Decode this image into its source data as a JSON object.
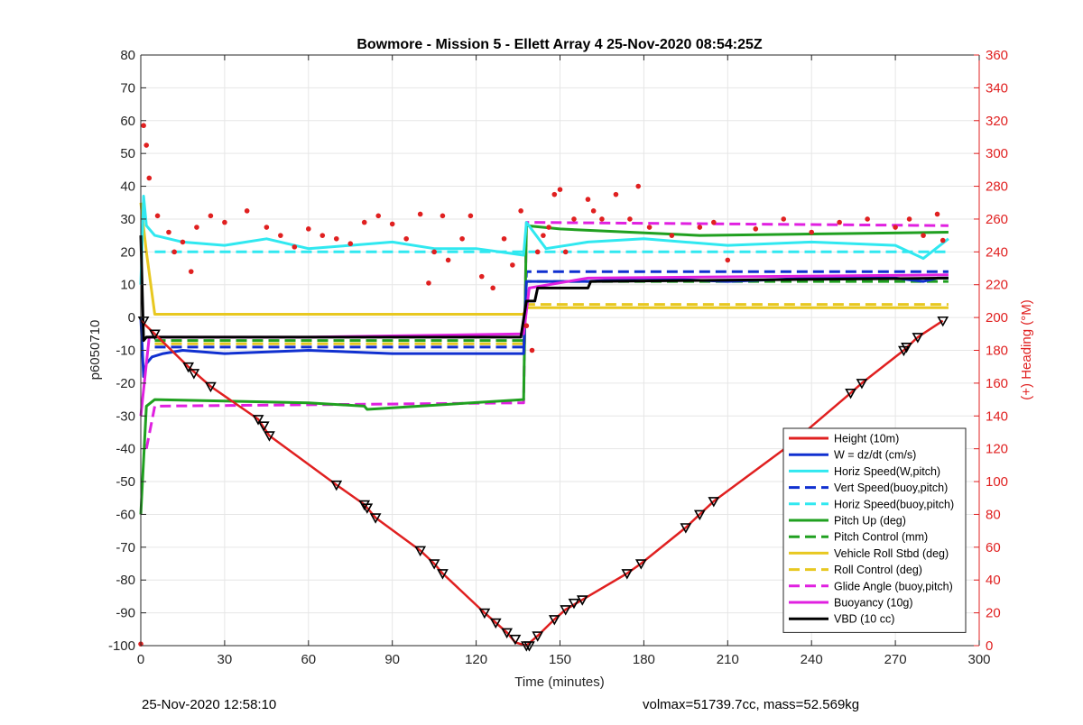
{
  "chart_data": {
    "type": "line",
    "title": "Bowmore - Mission 5 - Ellett Array 4 25-Nov-2020 08:54:25Z",
    "xlabel": "Time (minutes)",
    "ylabel": "p6050710",
    "y2label": "(+) Heading (°M)",
    "xlim": [
      0,
      300
    ],
    "ylim": [
      -100,
      80
    ],
    "y2lim": [
      0,
      360
    ],
    "xticks": [
      0,
      30,
      60,
      90,
      120,
      150,
      180,
      210,
      240,
      270,
      300
    ],
    "yticks": [
      -100,
      -90,
      -80,
      -70,
      -60,
      -50,
      -40,
      -30,
      -20,
      -10,
      0,
      10,
      20,
      30,
      40,
      50,
      60,
      70,
      80
    ],
    "y2ticks": [
      0,
      20,
      40,
      60,
      80,
      100,
      120,
      140,
      160,
      180,
      200,
      220,
      240,
      260,
      280,
      300,
      320,
      340,
      360
    ],
    "grid": true,
    "legend_position": "bottom-right",
    "series": [
      {
        "name": "Height (10m)",
        "color": "#e02020",
        "dash": "solid",
        "x": [
          0,
          5,
          17,
          25,
          42,
          46,
          70,
          80,
          84,
          100,
          105,
          108,
          123,
          127,
          131,
          134,
          138,
          142,
          148,
          152,
          158,
          174,
          179,
          195,
          200,
          205,
          232,
          254,
          258,
          273,
          278,
          287
        ],
        "y": [
          -1,
          -5,
          -15,
          -21,
          -31,
          -36,
          -51,
          -57,
          -61,
          -71,
          -75,
          -78,
          -90,
          -93,
          -96,
          -99,
          -100,
          -97,
          -92,
          -89,
          -86,
          -78,
          -75,
          -64,
          -60,
          -56,
          -39,
          -23,
          -20,
          -10,
          -6,
          -1
        ]
      },
      {
        "name": "W = dz/dt (cm/s)",
        "color": "#1030d0",
        "dash": "solid",
        "x": [
          0,
          1,
          2,
          4,
          8,
          15,
          30,
          60,
          90,
          120,
          137,
          138,
          145,
          160,
          180,
          210,
          240,
          270,
          280,
          285,
          289
        ],
        "y": [
          0,
          -18,
          -14,
          -12,
          -11,
          -10,
          -11,
          -10,
          -11,
          -11,
          -11,
          11,
          11,
          11,
          12,
          11,
          12,
          12,
          11,
          12,
          12
        ]
      },
      {
        "name": "Horiz Speed(W,pitch)",
        "color": "#30e8f0",
        "dash": "solid",
        "x": [
          0,
          1,
          2,
          5,
          15,
          30,
          45,
          60,
          75,
          90,
          105,
          120,
          137,
          138,
          145,
          160,
          180,
          210,
          240,
          270,
          280,
          289
        ],
        "y": [
          10,
          37,
          28,
          25,
          23,
          22,
          24,
          21,
          22,
          23,
          21,
          21,
          19,
          29,
          21,
          23,
          24,
          22,
          23,
          22,
          18,
          24
        ]
      },
      {
        "name": "Vert Speed(buoy,pitch)",
        "color": "#1030d0",
        "dash": "dashed",
        "x": [
          5,
          137,
          138,
          289
        ],
        "y": [
          -9,
          -9,
          14,
          14
        ]
      },
      {
        "name": "Horiz Speed(buoy,pitch)",
        "color": "#30e8f0",
        "dash": "dashed",
        "x": [
          5,
          137,
          138,
          289
        ],
        "y": [
          20,
          20,
          20,
          20
        ]
      },
      {
        "name": "Pitch Up (deg)",
        "color": "#20a020",
        "dash": "solid",
        "x": [
          0,
          2,
          5,
          60,
          80,
          81,
          137,
          138,
          150,
          200,
          289
        ],
        "y": [
          -60,
          -27,
          -25,
          -26,
          -27,
          -28,
          -25,
          28,
          27,
          25,
          26
        ]
      },
      {
        "name": "Pitch Control (mm)",
        "color": "#20a020",
        "dash": "dashed",
        "x": [
          5,
          137,
          138,
          289
        ],
        "y": [
          -7,
          -7,
          11,
          11
        ]
      },
      {
        "name": "Vehicle Roll Stbd (deg)",
        "color": "#e8c820",
        "dash": "solid",
        "x": [
          0,
          2,
          5,
          60,
          137,
          138,
          289
        ],
        "y": [
          35,
          20,
          1,
          1,
          1,
          3,
          3
        ]
      },
      {
        "name": "Roll Control (deg)",
        "color": "#e8c820",
        "dash": "dashed",
        "x": [
          5,
          137,
          138,
          289
        ],
        "y": [
          -8,
          -8,
          4,
          4
        ]
      },
      {
        "name": "Glide Angle (buoy,pitch)",
        "color": "#e020e0",
        "dash": "dashed",
        "x": [
          2,
          5,
          137,
          138,
          289
        ],
        "y": [
          -40,
          -27,
          -26,
          29,
          28
        ]
      },
      {
        "name": "Buoyancy (10g)",
        "color": "#e020e0",
        "dash": "solid",
        "x": [
          0,
          3,
          60,
          137,
          139,
          160,
          289
        ],
        "y": [
          -30,
          -6,
          -6,
          -5,
          9,
          12,
          13
        ]
      },
      {
        "name": "VBD (10 cc)",
        "color": "#000000",
        "dash": "solid",
        "x": [
          0,
          1,
          2,
          60,
          136,
          138,
          141,
          142,
          160,
          161,
          289
        ],
        "y": [
          25,
          -7,
          -6,
          -6,
          -6,
          5,
          5,
          9,
          9,
          11,
          12
        ]
      }
    ],
    "heading_series": {
      "name": "(+) Heading (°M)",
      "color": "#e02020",
      "axis": "right",
      "marker": "dot",
      "x": [
        0,
        1,
        2,
        3,
        6,
        10,
        12,
        15,
        18,
        20,
        25,
        30,
        38,
        45,
        50,
        55,
        60,
        65,
        70,
        75,
        80,
        85,
        90,
        95,
        100,
        103,
        105,
        108,
        110,
        115,
        118,
        122,
        126,
        130,
        133,
        136,
        138,
        140,
        142,
        144,
        146,
        148,
        150,
        152,
        155,
        160,
        162,
        165,
        170,
        175,
        178,
        182,
        190,
        200,
        205,
        210,
        220,
        230,
        240,
        250,
        260,
        270,
        275,
        280,
        285,
        287
      ],
      "y": [
        1,
        317,
        305,
        285,
        262,
        252,
        240,
        246,
        228,
        255,
        262,
        258,
        265,
        255,
        250,
        243,
        254,
        250,
        248,
        245,
        258,
        262,
        257,
        248,
        263,
        221,
        240,
        262,
        235,
        248,
        262,
        225,
        218,
        248,
        232,
        265,
        195,
        180,
        240,
        250,
        255,
        275,
        278,
        240,
        260,
        272,
        265,
        260,
        275,
        260,
        280,
        255,
        250,
        255,
        258,
        235,
        254,
        260,
        252,
        258,
        260,
        255,
        260,
        250,
        263,
        247
      ]
    },
    "height_markers": {
      "marker": "triangle",
      "color": "#000000",
      "x": [
        1,
        5,
        17,
        19,
        25,
        42,
        44,
        46,
        70,
        80,
        81,
        84,
        100,
        105,
        108,
        123,
        127,
        131,
        134,
        138,
        139,
        142,
        148,
        152,
        155,
        158,
        174,
        179,
        195,
        200,
        205,
        232,
        254,
        258,
        273,
        274,
        278,
        287
      ],
      "y": [
        -1,
        -5,
        -15,
        -17,
        -21,
        -31,
        -33,
        -36,
        -51,
        -57,
        -58,
        -61,
        -71,
        -75,
        -78,
        -90,
        -93,
        -96,
        -98,
        -100,
        -100,
        -97,
        -92,
        -89,
        -87,
        -86,
        -78,
        -75,
        -64,
        -60,
        -56,
        -39,
        -23,
        -20,
        -10,
        -9,
        -6,
        -1
      ]
    }
  },
  "footer": {
    "left": "25-Nov-2020 12:58:10",
    "right": "volmax=51739.7cc, mass=52.569kg"
  },
  "colors": {
    "background": "#ffffff",
    "axis": "#262626",
    "grid": "#e6e6e6",
    "right_axis": "#e02020"
  }
}
